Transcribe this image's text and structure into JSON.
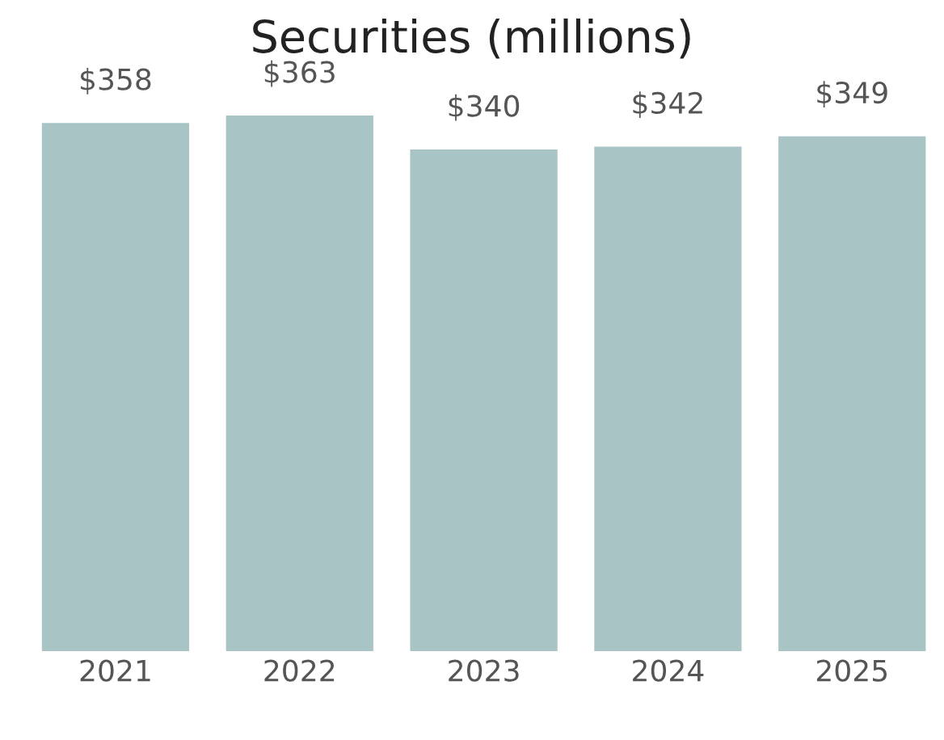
{
  "chart_data": {
    "type": "bar",
    "title": "Securities (millions)",
    "categories": [
      "2021",
      "2022",
      "2023",
      "2024",
      "2025"
    ],
    "values": [
      358,
      363,
      340,
      342,
      349
    ],
    "value_labels": [
      "$358",
      "$363",
      "$340",
      "$342",
      "$349"
    ],
    "color": "#a9c4c5",
    "grid": false,
    "legend": false
  }
}
